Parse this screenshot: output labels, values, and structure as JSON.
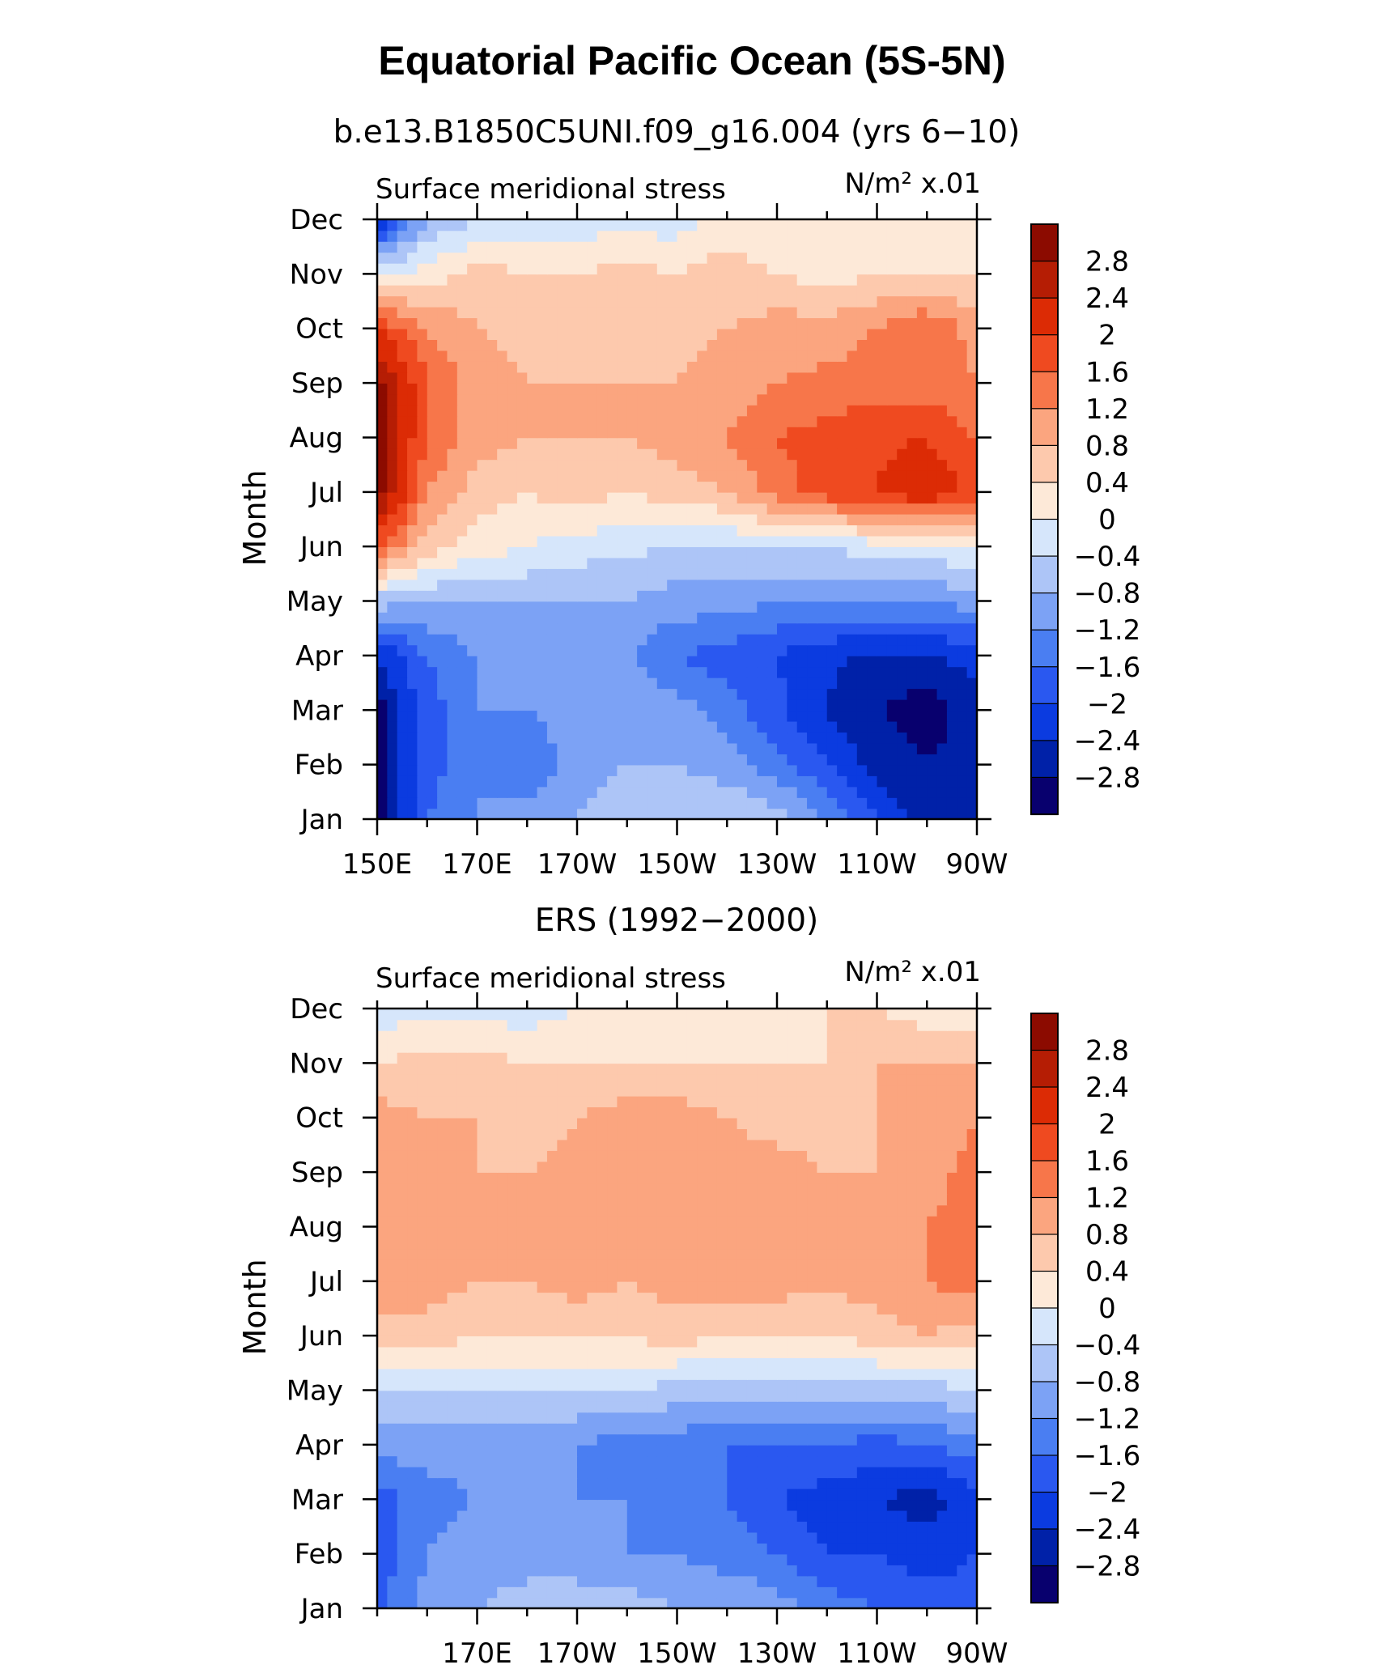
{
  "title": "Equatorial Pacific Ocean (5S-5N)",
  "chart_data": [
    {
      "type": "heatmap",
      "subtitle": "b.e13.B1850C5UNI.f09_g16.004 (yrs 6−10)",
      "left_label": "Surface meridional stress",
      "units_label": "N/m² x.01",
      "ylabel": "Month",
      "xlabel": "",
      "x_tick_labels": [
        "150E",
        "170E",
        "170W",
        "150W",
        "130W",
        "110W",
        "90W"
      ],
      "y_tick_labels": [
        "Jan",
        "Feb",
        "Mar",
        "Apr",
        "May",
        "Jun",
        "Jul",
        "Aug",
        "Sep",
        "Oct",
        "Nov",
        "Dec"
      ],
      "xlim": [
        150,
        270
      ],
      "ylim": [
        0,
        11
      ],
      "x": [
        150,
        160,
        170,
        180,
        190,
        200,
        210,
        220,
        230,
        240,
        250,
        260,
        270
      ],
      "z": [
        [
          -3.0,
          -1.6,
          -1.2,
          -1.0,
          -0.8,
          -0.6,
          -0.4,
          -0.4,
          -0.6,
          -1.2,
          -2.0,
          -2.6,
          -2.4
        ],
        [
          -3.0,
          -1.8,
          -1.2,
          -1.6,
          -1.0,
          -0.8,
          -0.8,
          -1.0,
          -1.4,
          -2.0,
          -2.6,
          -2.8,
          -2.6
        ],
        [
          -3.0,
          -1.8,
          -1.2,
          -1.2,
          -1.0,
          -0.8,
          -1.0,
          -1.4,
          -1.9,
          -2.4,
          -2.8,
          -3.0,
          -2.6
        ],
        [
          -2.4,
          -1.6,
          -1.2,
          -1.0,
          -1.0,
          -1.2,
          -1.6,
          -1.8,
          -2.0,
          -2.3,
          -2.5,
          -2.5,
          -2.2
        ],
        [
          -0.6,
          -0.8,
          -0.8,
          -0.8,
          -0.8,
          -0.8,
          -1.0,
          -1.0,
          -1.2,
          -1.2,
          -1.2,
          -1.2,
          -1.0
        ],
        [
          1.6,
          0.6,
          0.2,
          0.0,
          -0.2,
          -0.3,
          -0.4,
          -0.4,
          -0.4,
          -0.4,
          -0.2,
          -0.2,
          0.0
        ],
        [
          3.0,
          1.2,
          0.6,
          0.4,
          0.6,
          0.4,
          0.6,
          0.8,
          1.4,
          1.8,
          2.0,
          2.4,
          1.8
        ],
        [
          3.0,
          1.6,
          1.0,
          0.8,
          0.8,
          0.8,
          1.0,
          1.2,
          1.6,
          1.8,
          1.9,
          2.0,
          1.6
        ],
        [
          3.0,
          1.6,
          1.0,
          0.8,
          0.8,
          0.8,
          0.8,
          1.0,
          1.2,
          1.3,
          1.4,
          1.4,
          1.2
        ],
        [
          2.0,
          1.2,
          0.8,
          0.6,
          0.6,
          0.6,
          0.6,
          0.8,
          1.0,
          1.0,
          1.2,
          1.6,
          1.0
        ],
        [
          -0.2,
          0.2,
          0.6,
          0.4,
          0.4,
          0.6,
          0.4,
          0.6,
          0.4,
          0.2,
          0.4,
          0.4,
          0.4
        ],
        [
          -2.4,
          -0.8,
          -0.4,
          -0.2,
          -0.2,
          -0.2,
          -0.2,
          0.2,
          0.0,
          0.2,
          0.4,
          0.0,
          0.2
        ]
      ],
      "contour_levels": [
        -2.8,
        -2.4,
        -2,
        -1.6,
        -1.2,
        -0.8,
        -0.4,
        0,
        0.4,
        0.8,
        1.2,
        1.6,
        2,
        2.4,
        2.8
      ],
      "colorbar_labels": [
        "2.8",
        "2.4",
        "2",
        "1.6",
        "1.2",
        "0.8",
        "0.4",
        "0",
        "−0.4",
        "−0.8",
        "−1.2",
        "−1.6",
        "−2",
        "−2.4",
        "−2.8"
      ]
    },
    {
      "type": "heatmap",
      "subtitle": "ERS (1992−2000)",
      "left_label": "Surface meridional stress",
      "units_label": "N/m² x.01",
      "ylabel": "Month",
      "xlabel": "",
      "x_tick_labels": [
        "170E",
        "170W",
        "150W",
        "130W",
        "110W",
        "90W"
      ],
      "y_tick_labels": [
        "Jan",
        "Feb",
        "Mar",
        "Apr",
        "May",
        "Jun",
        "Jul",
        "Aug",
        "Sep",
        "Oct",
        "Nov",
        "Dec"
      ],
      "xlim": [
        150,
        270
      ],
      "ylim": [
        0,
        11
      ],
      "x": [
        150,
        160,
        170,
        180,
        190,
        200,
        210,
        220,
        230,
        240,
        250,
        260,
        270
      ],
      "z": [
        [
          -1.8,
          -1.0,
          -0.8,
          -0.6,
          -0.6,
          -0.6,
          -0.8,
          -0.8,
          -1.0,
          -1.4,
          -1.6,
          -1.8,
          -1.8
        ],
        [
          -1.8,
          -1.2,
          -1.0,
          -1.0,
          -1.0,
          -1.2,
          -1.2,
          -1.4,
          -1.6,
          -2.0,
          -2.0,
          -2.2,
          -2.0
        ],
        [
          -1.8,
          -1.4,
          -1.2,
          -1.0,
          -1.2,
          -1.2,
          -1.4,
          -1.6,
          -2.0,
          -2.2,
          -2.4,
          -2.6,
          -2.2
        ],
        [
          -1.0,
          -1.0,
          -1.0,
          -1.2,
          -1.2,
          -1.4,
          -1.4,
          -1.6,
          -1.6,
          -1.6,
          -1.8,
          -1.6,
          -1.4
        ],
        [
          -0.4,
          -0.4,
          -0.4,
          -0.4,
          -0.4,
          -0.4,
          -0.6,
          -0.6,
          -0.6,
          -0.6,
          -0.6,
          -0.6,
          -0.4
        ],
        [
          0.6,
          0.6,
          0.4,
          0.4,
          0.4,
          0.4,
          0.6,
          0.4,
          0.4,
          0.4,
          0.6,
          0.8,
          0.6
        ],
        [
          1.0,
          1.0,
          0.8,
          0.8,
          1.0,
          0.8,
          1.0,
          1.0,
          1.0,
          0.9,
          1.0,
          1.2,
          1.4
        ],
        [
          1.0,
          1.0,
          0.8,
          0.8,
          1.0,
          1.0,
          1.0,
          1.0,
          1.0,
          1.0,
          1.0,
          1.2,
          1.4
        ],
        [
          1.2,
          1.0,
          0.8,
          0.8,
          0.9,
          1.0,
          1.0,
          1.0,
          1.0,
          0.8,
          0.8,
          1.0,
          1.4
        ],
        [
          1.0,
          0.8,
          0.8,
          0.6,
          0.8,
          1.0,
          1.0,
          0.8,
          0.6,
          0.6,
          0.8,
          0.8,
          1.2
        ],
        [
          0.4,
          0.6,
          0.6,
          0.4,
          0.4,
          0.4,
          0.4,
          0.4,
          0.4,
          0.4,
          0.8,
          0.8,
          0.8
        ],
        [
          -0.2,
          -0.2,
          -0.2,
          -0.2,
          0.0,
          0.0,
          0.0,
          0.2,
          0.2,
          0.4,
          0.4,
          0.2,
          0.2
        ]
      ],
      "contour_levels": [
        -2.8,
        -2.4,
        -2,
        -1.6,
        -1.2,
        -0.8,
        -0.4,
        0,
        0.4,
        0.8,
        1.2,
        1.6,
        2,
        2.4,
        2.8
      ],
      "colorbar_labels": [
        "2.8",
        "2.4",
        "2",
        "1.6",
        "1.2",
        "0.8",
        "0.4",
        "0",
        "−0.4",
        "−0.8",
        "−1.2",
        "−1.6",
        "−2",
        "−2.4",
        "−2.8"
      ]
    }
  ],
  "palette": [
    "#08006e",
    "#0021a8",
    "#0b3be0",
    "#2a58f0",
    "#4a7ef2",
    "#7ca2f5",
    "#adc5f7",
    "#d6e6fb",
    "#fde9d8",
    "#fdc9ad",
    "#fba57f",
    "#f7764a",
    "#ef4a20",
    "#dc2b05",
    "#b51d04",
    "#8c0b00"
  ]
}
